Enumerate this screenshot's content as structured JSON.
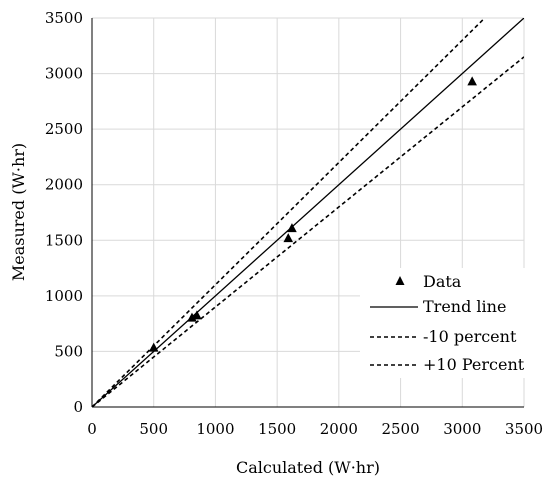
{
  "chart_data": {
    "type": "scatter",
    "xlabel": "Calculated (W·hr)",
    "ylabel": "Measured (W·hr)",
    "xlim": [
      0,
      3500
    ],
    "ylim": [
      0,
      3500
    ],
    "x_ticks": [
      0,
      500,
      1000,
      1500,
      2000,
      2500,
      3000,
      3500
    ],
    "y_ticks": [
      0,
      500,
      1000,
      1500,
      2000,
      2500,
      3000,
      3500
    ],
    "x_tick_labels": [
      "0",
      "500",
      "1000",
      "1500",
      "2000",
      "2500",
      "3000",
      "3500"
    ],
    "y_tick_labels": [
      "0",
      "500",
      "1000",
      "1500",
      "2000",
      "2500",
      "3000",
      "3500"
    ],
    "grid": true,
    "legend_position": "bottom-right",
    "series": [
      {
        "name": "Data",
        "kind": "markers",
        "marker": "triangle",
        "color": "#000000",
        "points": [
          [
            500,
            530
          ],
          [
            810,
            800
          ],
          [
            850,
            820
          ],
          [
            1590,
            1515
          ],
          [
            1620,
            1605
          ],
          [
            3080,
            2925
          ]
        ]
      },
      {
        "name": "Trend line",
        "kind": "line",
        "style": "solid",
        "color": "#000000",
        "slope": 1.0
      },
      {
        "name": "-10 percent",
        "kind": "line",
        "style": "dashed",
        "color": "#000000",
        "slope": 0.9
      },
      {
        "name": "+10 Percent",
        "kind": "line",
        "style": "dashed",
        "color": "#000000",
        "slope": 1.1
      }
    ]
  }
}
